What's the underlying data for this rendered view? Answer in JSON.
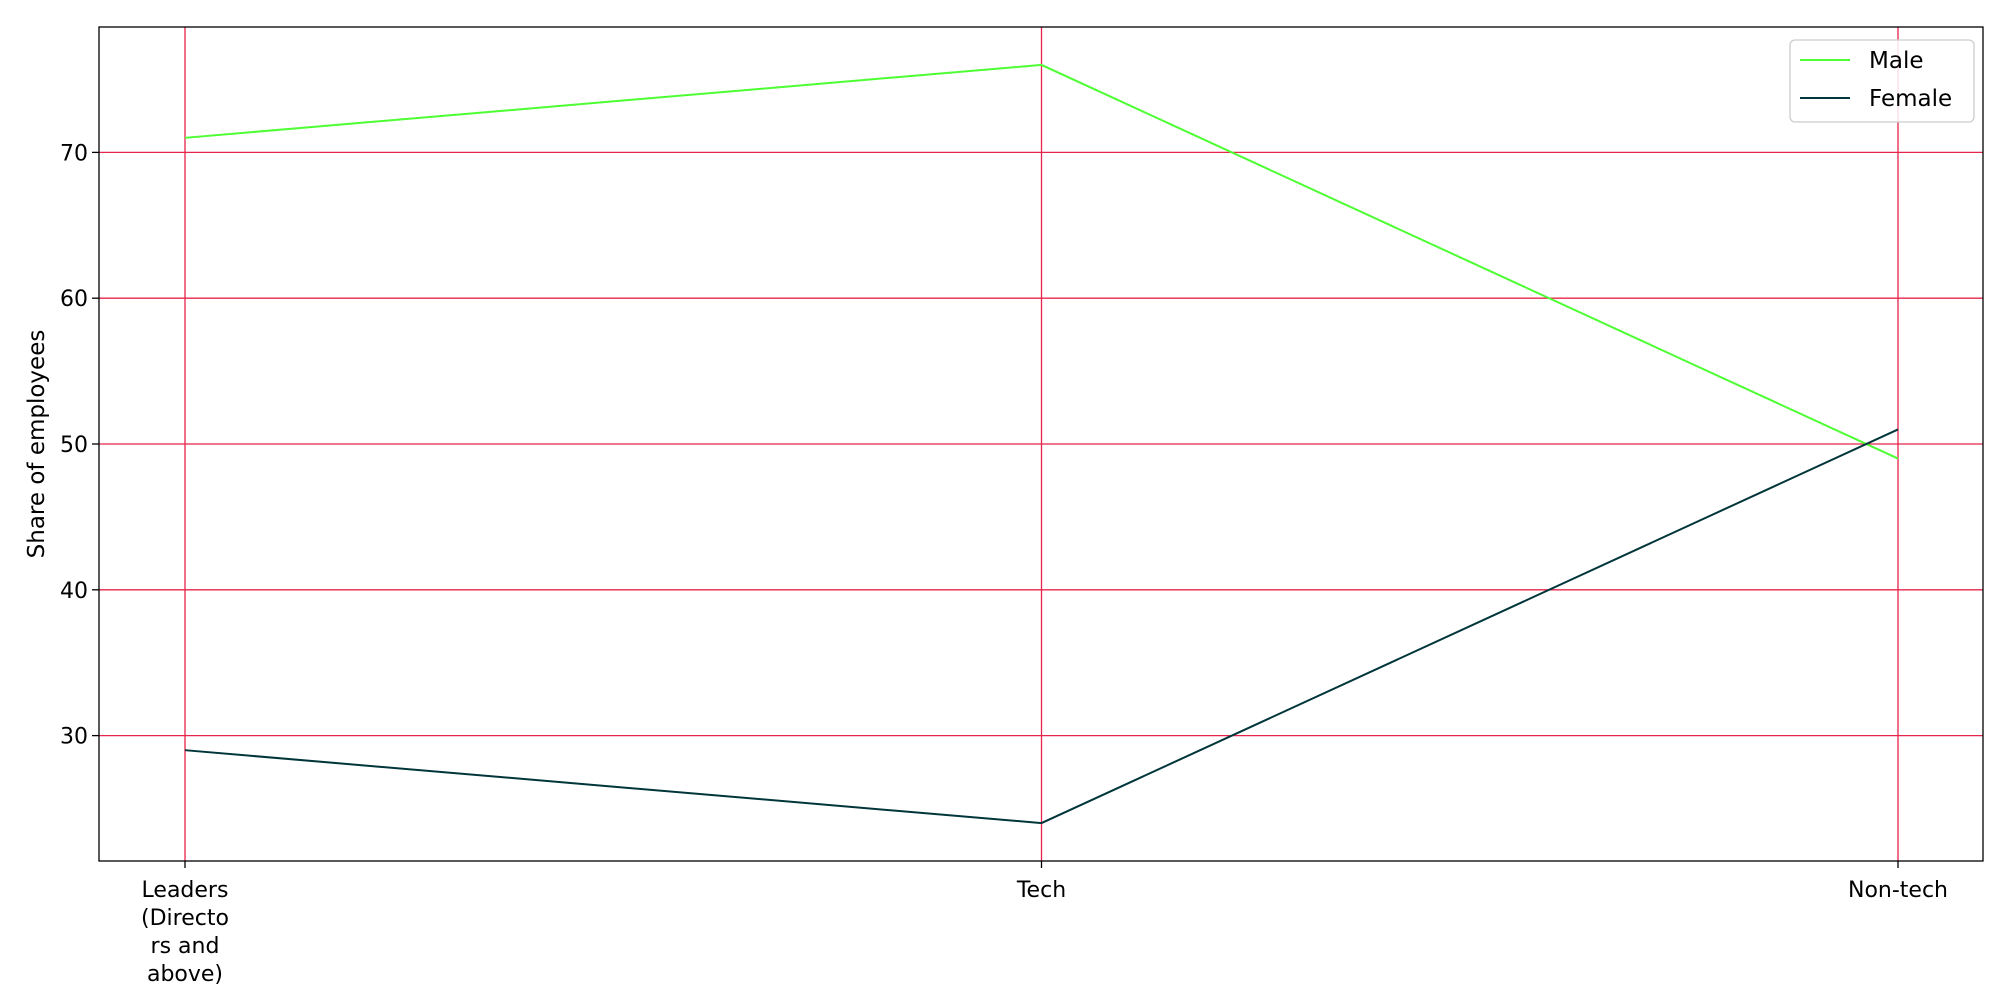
{
  "chart_data": {
    "type": "line",
    "title": "",
    "xlabel": "",
    "ylabel": "Share of employees",
    "categories": [
      "Leaders\n(Directo\nrs and\nabove)",
      "Tech",
      "Non-tech"
    ],
    "series": [
      {
        "name": "Male",
        "values": [
          71,
          76,
          49
        ],
        "color": "#4dff33"
      },
      {
        "name": "Female",
        "values": [
          29,
          24,
          51
        ],
        "color": "#00353a"
      }
    ],
    "yticks": [
      30,
      40,
      50,
      60,
      70
    ],
    "ylim": [
      21.4,
      78.6
    ],
    "grid": true,
    "grid_color": "#e8244a",
    "legend_position": "top-right"
  }
}
